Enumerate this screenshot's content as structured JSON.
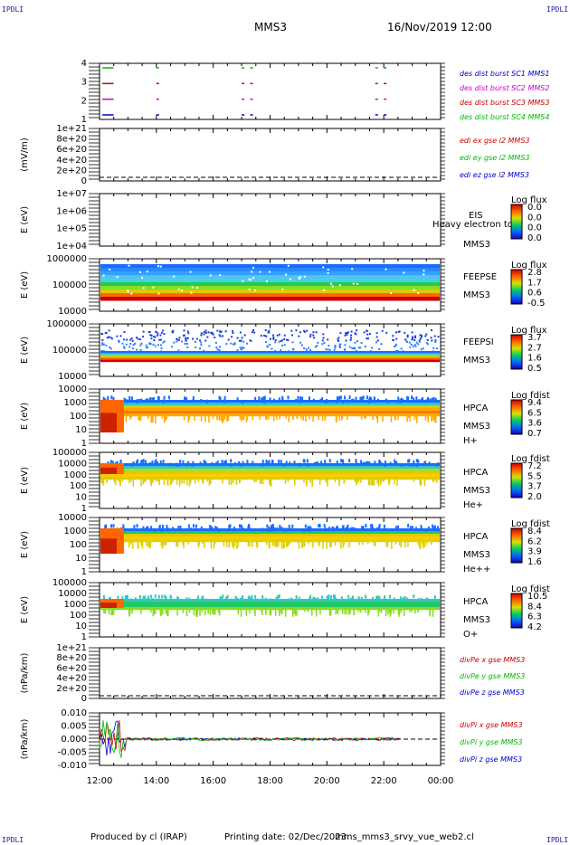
{
  "corners": {
    "tl": "IPDLI",
    "tr": "IPDLI",
    "bl": "IPDLI",
    "br": "IPDLI"
  },
  "header": {
    "mission": "MMS3",
    "date": "16/Nov/2019 12:00"
  },
  "footer": {
    "produced": "Produced by cl (IRAP)",
    "printing": "Printing date: 02/Dec/2023",
    "file": "mms_mms3_srvy_vue_web2.cl"
  },
  "time_axis": {
    "ticks": [
      "12:00",
      "14:00",
      "16:00",
      "18:00",
      "20:00",
      "22:00",
      "00:00"
    ]
  },
  "colors": {
    "c1": "#0000cc",
    "c2": "#cc00cc",
    "c3": "#cc0000",
    "c4": "#00bb00"
  },
  "chart_data": [
    {
      "type": "scatter",
      "panel": "burst",
      "yticks": [
        "4",
        "3",
        "2",
        "1"
      ],
      "legend": [
        "des dist burst SC1 MMS1",
        "des dist burst SC2 MMS2",
        "des dist burst SC3 MMS3",
        "des dist burst SC4 MMS4"
      ],
      "series": [
        {
          "name": "des dist burst SC1 MMS1",
          "level": 4,
          "x": [
            12.1,
            12.4,
            14.0,
            17.0,
            17.3,
            21.7,
            22.0
          ]
        },
        {
          "name": "des dist burst SC2 MMS2",
          "level": 3,
          "x": [
            12.1,
            12.4,
            14.0,
            17.0,
            17.3,
            21.7,
            22.0
          ]
        },
        {
          "name": "des dist burst SC3 MMS3",
          "level": 2,
          "x": [
            12.1,
            12.4,
            14.0,
            17.0,
            17.3,
            21.7,
            22.0
          ]
        },
        {
          "name": "des dist burst SC4 MMS4",
          "level": 1,
          "x": [
            12.1,
            12.4,
            14.0,
            17.0,
            17.3,
            21.7,
            22.0
          ]
        }
      ]
    },
    {
      "type": "line",
      "panel": "edi",
      "ylabel": "(mV/m)",
      "yticks": [
        "1e+21",
        "8e+20",
        "6e+20",
        "4e+20",
        "2e+20",
        "0"
      ],
      "legend": [
        "edi ex gse l2 MMS3",
        "edi ey gse l2 MMS3",
        "edi ez gse l2 MMS3"
      ]
    },
    {
      "type": "heatmap",
      "panel": "eis",
      "ylabel": "E (eV)",
      "yticks": [
        "1e+07",
        "1e+06",
        "1e+05",
        "1e+04"
      ],
      "labels": [
        "EIS",
        "Heavy electron to",
        "MMS3"
      ],
      "cbar_title": "Log flux",
      "cbar_ticks": [
        "0.0",
        "0.0",
        "0.0",
        "0.0"
      ]
    },
    {
      "type": "heatmap",
      "panel": "feepse",
      "ylabel": "E (eV)",
      "yticks": [
        "1000000",
        "100000",
        "10000"
      ],
      "labels": [
        "FEEPSE",
        "MMS3"
      ],
      "cbar_title": "Log flux",
      "cbar_ticks": [
        "2.8",
        "1.7",
        "0.6",
        "-0.5"
      ]
    },
    {
      "type": "heatmap",
      "panel": "feepsi",
      "ylabel": "E (eV)",
      "yticks": [
        "1000000",
        "100000",
        "10000"
      ],
      "labels": [
        "FEEPSI",
        "MMS3"
      ],
      "cbar_title": "Log flux",
      "cbar_ticks": [
        "3.7",
        "2.7",
        "1.6",
        "0.5"
      ]
    },
    {
      "type": "heatmap",
      "panel": "hpca_h",
      "ylabel": "E (eV)",
      "yticks": [
        "10000",
        "1000",
        "100",
        "10",
        "1"
      ],
      "labels": [
        "HPCA",
        "MMS3",
        "H+"
      ],
      "cbar_title": "Log fdist",
      "cbar_ticks": [
        "9.4",
        "6.5",
        "3.6",
        "0.7"
      ]
    },
    {
      "type": "heatmap",
      "panel": "hpca_he",
      "ylabel": "E (eV)",
      "yticks": [
        "100000",
        "10000",
        "1000",
        "100",
        "10",
        "1"
      ],
      "labels": [
        "HPCA",
        "MMS3",
        "He+"
      ],
      "cbar_title": "Log fdist",
      "cbar_ticks": [
        "7.2",
        "5.5",
        "3.7",
        "2.0"
      ]
    },
    {
      "type": "heatmap",
      "panel": "hpca_hepp",
      "ylabel": "E (eV)",
      "yticks": [
        "10000",
        "1000",
        "100",
        "10",
        "1"
      ],
      "labels": [
        "HPCA",
        "MMS3",
        "He++"
      ],
      "cbar_title": "Log fdist",
      "cbar_ticks": [
        "8.4",
        "6.2",
        "3.9",
        "1.6"
      ]
    },
    {
      "type": "heatmap",
      "panel": "hpca_o",
      "ylabel": "E (eV)",
      "yticks": [
        "100000",
        "10000",
        "1000",
        "100",
        "10",
        "1"
      ],
      "labels": [
        "HPCA",
        "MMS3",
        "O+"
      ],
      "cbar_title": "Log fdist",
      "cbar_ticks": [
        "10.5",
        "8.4",
        "6.3",
        "4.2"
      ]
    },
    {
      "type": "line",
      "panel": "divpe",
      "ylabel": "(nPa/km)",
      "yticks": [
        "1e+21",
        "8e+20",
        "6e+20",
        "4e+20",
        "2e+20",
        "0"
      ],
      "legend": [
        "divPe x gse MMS3",
        "divPe y gse MMS3",
        "divPe z gse MMS3"
      ]
    },
    {
      "type": "line",
      "panel": "divpi",
      "ylabel": "(nPa/km)",
      "yticks": [
        "0.010",
        "0.005",
        "0.000",
        "-0.005",
        "-0.010"
      ],
      "legend": [
        "divPi x gse MMS3",
        "divPi y gse MMS3",
        "divPi z gse MMS3"
      ]
    }
  ]
}
